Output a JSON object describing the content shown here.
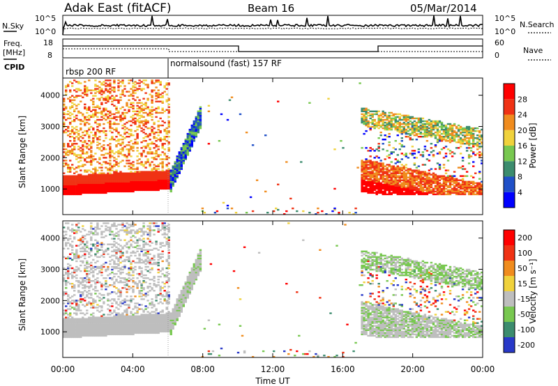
{
  "header": {
    "station": "Adak East (fitACF)",
    "beam": "Beam 16",
    "date": "05/Mar/2014"
  },
  "panels": {
    "nsky_label": "N.Sky",
    "nsearch_label": "N.Search",
    "freq_label_line1": "Freq.",
    "freq_label_line2": "[MHz]",
    "nave_label": "Nave",
    "cpid_label": "CPID",
    "nsky_ticks": [
      "10^5",
      "10^0"
    ],
    "nsearch_ticks": [
      "10^5",
      "10^0"
    ],
    "freq_ticks": [
      "18",
      "8"
    ],
    "nave_ticks": [
      "60",
      "0"
    ]
  },
  "cpid": {
    "segments": [
      {
        "label": "rbsp 200 RF",
        "start_h": 0,
        "end_h": 6
      },
      {
        "label": "normalsound (fast) 157 RF",
        "start_h": 6,
        "end_h": 24
      }
    ]
  },
  "chart_data": [
    {
      "type": "heatmap",
      "name": "power",
      "ylabel": "Slant Range [km]",
      "yticks": [
        "1000",
        "2000",
        "3000",
        "4000"
      ],
      "xticks": [
        "00:00",
        "04:00",
        "08:00",
        "12:00",
        "16:00",
        "20:00",
        "00:00"
      ],
      "xlabel": "Time UT",
      "xlim_hours": [
        0,
        24
      ],
      "ylim_km": [
        180,
        4550
      ],
      "colorbar": {
        "label": "Power [dB]",
        "ticks": [
          "4",
          "8",
          "12",
          "16",
          "20",
          "24",
          "28"
        ],
        "range": [
          0,
          32
        ]
      },
      "colors": [
        "#0000ff",
        "#2050c8",
        "#3c8c6e",
        "#78c850",
        "#f0d23c",
        "#f08c1e",
        "#f03214",
        "#ff0000"
      ]
    },
    {
      "type": "heatmap",
      "name": "velocity",
      "ylabel": "Slant Range [km]",
      "yticks": [
        "1000",
        "2000",
        "3000",
        "4000"
      ],
      "xticks": [
        "00:00",
        "04:00",
        "08:00",
        "12:00",
        "16:00",
        "20:00",
        "00:00"
      ],
      "xlabel": "Time UT",
      "xlim_hours": [
        0,
        24
      ],
      "ylim_km": [
        180,
        4550
      ],
      "colorbar": {
        "label": "Velocity [m s⁻¹]",
        "ticks": [
          "200",
          "100",
          "50",
          "15",
          "-15",
          "-50",
          "-100",
          "-200"
        ],
        "range": [
          -250,
          250
        ]
      },
      "colors": [
        "#2838c8",
        "#3c8c6e",
        "#78c850",
        "#bebebe",
        "#f0d23c",
        "#f08c1e",
        "#f03214",
        "#ff0000"
      ]
    }
  ]
}
